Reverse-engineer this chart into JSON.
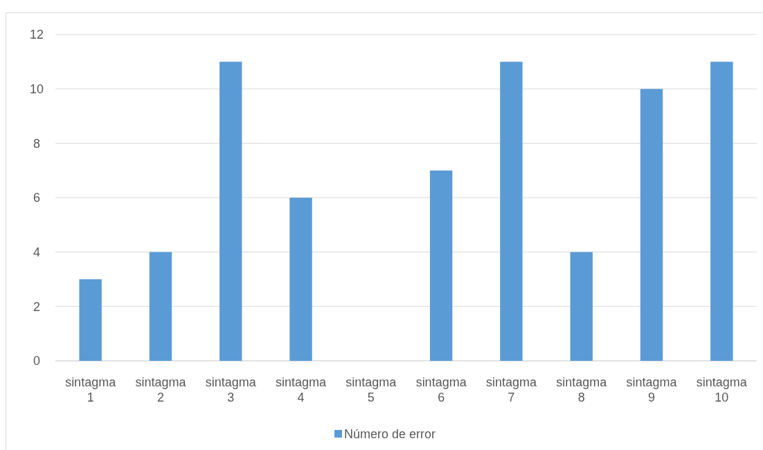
{
  "chart_data": {
    "type": "bar",
    "categories": [
      "sintagma 1",
      "sintagma 2",
      "sintagma 3",
      "sintagma 4",
      "sintagma 5",
      "sintagma 6",
      "sintagma 7",
      "sintagma 8",
      "sintagma 9",
      "sintagma 10"
    ],
    "series": [
      {
        "name": "Número de error",
        "color": "#5b9bd5",
        "values": [
          3,
          4,
          11,
          6,
          0,
          7,
          11,
          4,
          10,
          11
        ]
      }
    ],
    "ylim": [
      0,
      12
    ],
    "yticks": [
      0,
      2,
      4,
      6,
      8,
      10,
      12
    ],
    "grid": "y",
    "legend": "bottom"
  }
}
